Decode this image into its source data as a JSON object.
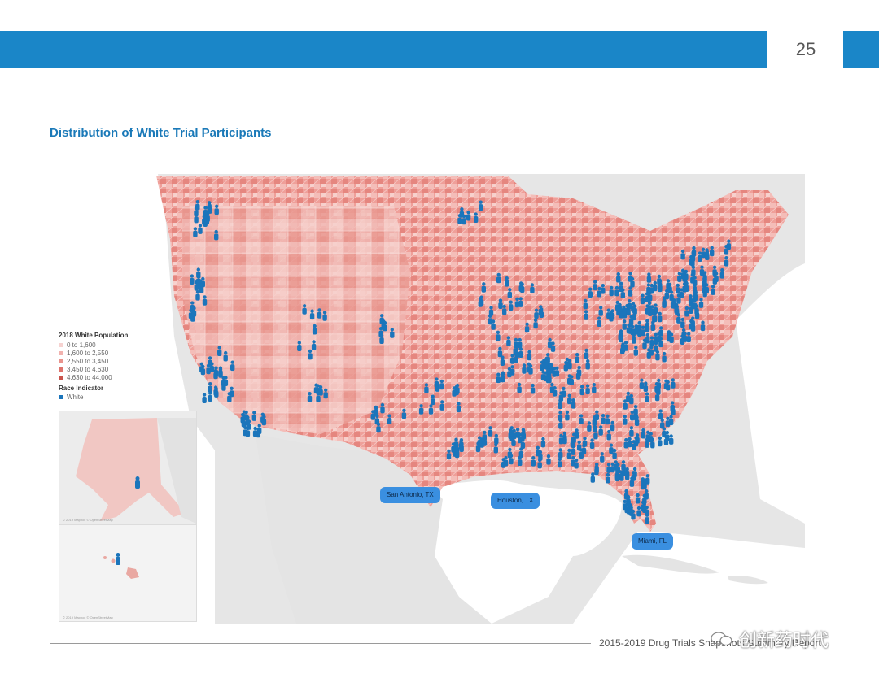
{
  "header": {
    "page_number": "25"
  },
  "title": "Distribution of White Trial Participants",
  "legend": {
    "population_title": "2018 White Population",
    "population_bins": [
      {
        "label": "0 to 1,600",
        "color": "#f6d2d0"
      },
      {
        "label": "1,600 to 2,550",
        "color": "#f1b2ae"
      },
      {
        "label": "2,550 to 3,450",
        "color": "#e9938d"
      },
      {
        "label": "3,450 to 4,630",
        "color": "#de736c"
      },
      {
        "label": "4,630 to 44,000",
        "color": "#c9544c"
      }
    ],
    "race_title": "Race Indicator",
    "race_items": [
      {
        "label": "White",
        "color": "#1b75bb"
      }
    ]
  },
  "city_labels": [
    {
      "name": "San Antonio, TX"
    },
    {
      "name": "Houston, TX"
    },
    {
      "name": "Miami, FL"
    }
  ],
  "inset_credit": "© 2019 Mapbox © OpenStreetMap",
  "footer": {
    "text": "2015-2019 Drug Trials Snapshots Summary Report"
  },
  "watermark": {
    "text": "创新药时代"
  },
  "colors": {
    "accent": "#1a86c8",
    "marker": "#1b75bb",
    "title": "#1a79b8"
  }
}
